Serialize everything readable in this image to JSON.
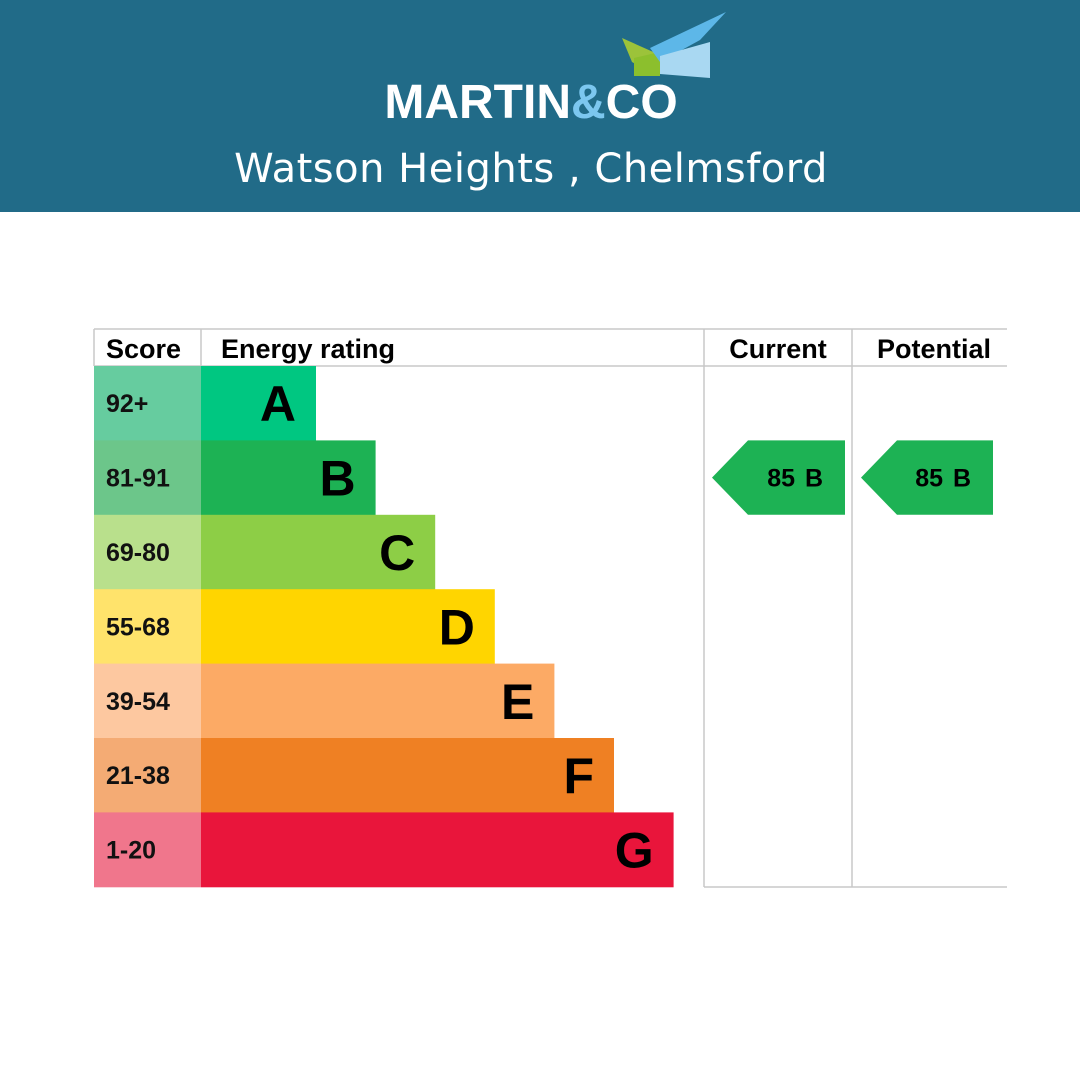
{
  "header": {
    "brand": [
      "MARTIN",
      "&",
      "CO"
    ],
    "location": "Watson Heights , Chelmsford"
  },
  "table": {
    "headers": [
      "Score",
      "Energy rating",
      "Current",
      "Potential"
    ],
    "rows": [
      {
        "score": "92+",
        "rating": "A",
        "color": "#00c781",
        "score_color": "#66cc9f"
      },
      {
        "score": "81-91",
        "rating": "B",
        "color": "#1db254",
        "score_color": "#6cc68a"
      },
      {
        "score": "69-80",
        "rating": "C",
        "color": "#8dce46",
        "score_color": "#b9e08c"
      },
      {
        "score": "55-68",
        "rating": "D",
        "color": "#ffd500",
        "score_color": "#ffe36b"
      },
      {
        "score": "39-54",
        "rating": "E",
        "color": "#fcaa65",
        "score_color": "#fdc8a0"
      },
      {
        "score": "21-38",
        "rating": "F",
        "color": "#ef8023",
        "score_color": "#f4ab74"
      },
      {
        "score": "1-20",
        "rating": "G",
        "color": "#e9153b",
        "score_color": "#f0768c"
      }
    ]
  },
  "current": {
    "score": 85,
    "rating": "B"
  },
  "potential": {
    "score": 85,
    "rating": "B"
  }
}
